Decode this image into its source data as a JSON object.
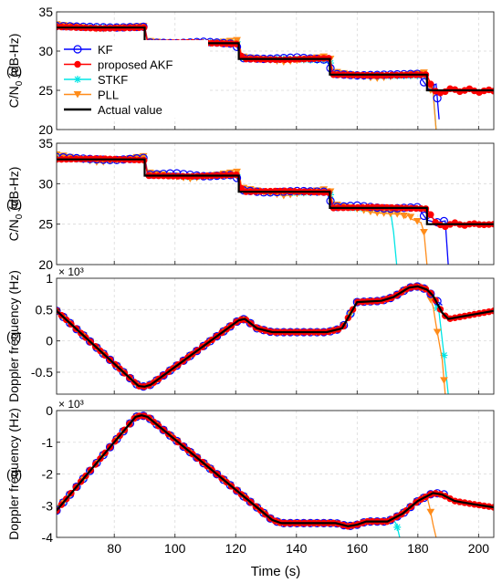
{
  "colors": {
    "kf": "#0000ff",
    "akf": "#ff0000",
    "stkf": "#00e5e5",
    "pll": "#ff8c1a",
    "actual": "#000000",
    "grid": "#d9d9d9"
  },
  "xaxis": {
    "label": "Time (s)",
    "ticks": [
      "80",
      "100",
      "120",
      "140",
      "160",
      "180",
      "200"
    ]
  },
  "chart_data": [
    {
      "type": "line",
      "panel_label": "(a)",
      "ylabel": "C/N₀ (dB-Hz)",
      "ylabel_main": "C/N",
      "ylabel_sub": "0",
      "ylabel_rest": " (dB-Hz)",
      "xlim": [
        61,
        205
      ],
      "ylim": [
        20,
        35
      ],
      "yticks": [
        "20",
        "25",
        "30",
        "35"
      ],
      "ytick_values": [
        20,
        25,
        30,
        35
      ],
      "exponent": "",
      "grid": true,
      "legend": {
        "placement": "left",
        "entries": [
          {
            "name": "KF",
            "color": "#0000ff",
            "marker": "circle"
          },
          {
            "name": "proposed AKF",
            "color": "#ff0000",
            "marker": "dot"
          },
          {
            "name": "STKF",
            "color": "#00e5e5",
            "marker": "star"
          },
          {
            "name": "PLL",
            "color": "#ff8c1a",
            "marker": "triangle"
          },
          {
            "name": "Actual value",
            "color": "#000000",
            "marker": "none"
          }
        ]
      },
      "series": [
        {
          "name": "Actual value",
          "x": [
            61,
            90,
            90,
            121,
            121,
            151,
            151,
            183,
            183,
            205
          ],
          "y": [
            33,
            33,
            31,
            31,
            29,
            29,
            27,
            27,
            25,
            25
          ]
        },
        {
          "name": "KF",
          "x": [
            61,
            70,
            80,
            90,
            91,
            100,
            110,
            120,
            122,
            130,
            140,
            150,
            152,
            160,
            170,
            180,
            183,
            185,
            186,
            187
          ],
          "y": [
            33.2,
            33.1,
            33.0,
            33.1,
            31.1,
            31.0,
            31.2,
            30.9,
            29.1,
            29.0,
            29.2,
            28.9,
            27.1,
            26.9,
            27.0,
            27.1,
            25.5,
            25.6,
            25.8,
            21.3
          ]
        },
        {
          "name": "proposed AKF",
          "x": [
            61,
            75,
            90,
            91,
            105,
            121,
            122,
            136,
            151,
            152,
            166,
            183,
            185,
            188,
            191,
            194,
            197,
            200,
            203,
            205
          ],
          "y": [
            33.1,
            32.9,
            33.0,
            31.0,
            31.1,
            30.9,
            29.0,
            28.9,
            29.1,
            27.0,
            26.9,
            27.0,
            25.0,
            24.6,
            25.3,
            24.8,
            25.2,
            24.7,
            25.1,
            24.9
          ]
        },
        {
          "name": "STKF",
          "x": [
            61,
            75,
            90,
            91,
            105,
            121,
            122,
            136,
            151,
            152,
            166,
            183,
            184,
            185,
            186
          ],
          "y": [
            33.2,
            33.0,
            33.1,
            31.1,
            31.0,
            31.2,
            29.1,
            29.0,
            28.8,
            27.2,
            26.8,
            26.9,
            25.3,
            25.0,
            20.0
          ]
        },
        {
          "name": "PLL",
          "x": [
            61,
            75,
            90,
            91,
            105,
            121,
            122,
            136,
            151,
            152,
            166,
            183,
            184,
            185,
            186
          ],
          "y": [
            33.4,
            32.8,
            33.2,
            31.3,
            30.7,
            31.4,
            29.3,
            28.6,
            29.4,
            27.4,
            26.5,
            27.3,
            25.1,
            24.7,
            20.0
          ]
        }
      ]
    },
    {
      "type": "line",
      "panel_label": "(b)",
      "ylabel": "C/N₀ (dB-Hz)",
      "ylabel_main": "C/N",
      "ylabel_sub": "0",
      "ylabel_rest": " (dB-Hz)",
      "xlim": [
        61,
        205
      ],
      "ylim": [
        20,
        35
      ],
      "yticks": [
        "20",
        "25",
        "30",
        "35"
      ],
      "ytick_values": [
        20,
        25,
        30,
        35
      ],
      "exponent": "",
      "grid": true,
      "series": [
        {
          "name": "Actual value",
          "x": [
            61,
            90,
            90,
            121,
            121,
            151,
            151,
            183,
            183,
            205
          ],
          "y": [
            33,
            33,
            31,
            31,
            29,
            29,
            27,
            27,
            25,
            25
          ]
        },
        {
          "name": "KF",
          "x": [
            61,
            70,
            80,
            90,
            91,
            100,
            110,
            120,
            122,
            130,
            140,
            150,
            152,
            160,
            170,
            180,
            183,
            186,
            189,
            190
          ],
          "y": [
            33.3,
            33.1,
            32.9,
            33.2,
            31.1,
            31.3,
            30.9,
            31.1,
            29.2,
            28.9,
            29.1,
            29.0,
            27.1,
            27.3,
            26.9,
            27.1,
            25.5,
            25.2,
            25.4,
            20.0
          ]
        },
        {
          "name": "proposed AKF",
          "x": [
            61,
            75,
            90,
            91,
            105,
            121,
            122,
            136,
            151,
            152,
            166,
            183,
            186,
            189,
            192,
            195,
            198,
            201,
            205
          ],
          "y": [
            33.0,
            33.1,
            32.9,
            31.0,
            30.9,
            31.1,
            29.0,
            29.1,
            28.9,
            27.0,
            27.1,
            26.9,
            25.1,
            24.7,
            25.2,
            24.8,
            25.1,
            24.9,
            25.0
          ]
        },
        {
          "name": "STKF",
          "x": [
            61,
            75,
            90,
            91,
            105,
            121,
            122,
            136,
            151,
            152,
            166,
            171,
            172,
            173
          ],
          "y": [
            33.2,
            32.9,
            33.1,
            31.2,
            30.8,
            31.1,
            29.2,
            28.8,
            29.0,
            27.2,
            26.8,
            26.6,
            24.0,
            20.0
          ]
        },
        {
          "name": "PLL",
          "x": [
            61,
            75,
            90,
            91,
            105,
            121,
            122,
            136,
            151,
            152,
            166,
            175,
            176,
            177,
            178,
            181,
            182,
            183
          ],
          "y": [
            33.6,
            32.6,
            33.4,
            31.4,
            30.6,
            31.5,
            29.5,
            28.5,
            29.4,
            27.5,
            26.4,
            26.2,
            25.8,
            26.3,
            25.6,
            25.2,
            24.0,
            20.0
          ]
        }
      ]
    },
    {
      "type": "line",
      "panel_label": "(c)",
      "ylabel": "Doppler frequency (Hz)",
      "xlim": [
        61,
        205
      ],
      "ylim": [
        -0.85,
        1.0
      ],
      "yticks": [
        "-0.5",
        "0",
        "0.5",
        "1"
      ],
      "ytick_values": [
        -0.5,
        0,
        0.5,
        1
      ],
      "exponent": "× 10³",
      "grid": true,
      "series": [
        {
          "name": "Actual value",
          "x": [
            61,
            88,
            90,
            92,
            121,
            123,
            127,
            132,
            150,
            155,
            160,
            168,
            172,
            177,
            180,
            183,
            185,
            188,
            190,
            205
          ],
          "y": [
            0.48,
            -0.72,
            -0.73,
            -0.7,
            0.33,
            0.35,
            0.2,
            0.14,
            0.14,
            0.2,
            0.62,
            0.64,
            0.7,
            0.85,
            0.87,
            0.82,
            0.72,
            0.45,
            0.35,
            0.48
          ]
        },
        {
          "name": "KF",
          "x": [
            61,
            88,
            90,
            92,
            121,
            123,
            127,
            132,
            150,
            155,
            160,
            168,
            172,
            177,
            180,
            183,
            186,
            188
          ],
          "y": [
            0.48,
            -0.72,
            -0.73,
            -0.7,
            0.33,
            0.35,
            0.2,
            0.14,
            0.14,
            0.2,
            0.62,
            0.64,
            0.7,
            0.85,
            0.87,
            0.82,
            0.65,
            0.57
          ]
        },
        {
          "name": "proposed AKF",
          "x": [
            61,
            88,
            90,
            92,
            121,
            123,
            127,
            132,
            150,
            155,
            160,
            168,
            172,
            177,
            180,
            183,
            185,
            188,
            190,
            205
          ],
          "y": [
            0.48,
            -0.72,
            -0.73,
            -0.7,
            0.33,
            0.35,
            0.2,
            0.14,
            0.14,
            0.2,
            0.62,
            0.64,
            0.7,
            0.85,
            0.87,
            0.82,
            0.72,
            0.45,
            0.35,
            0.48
          ]
        },
        {
          "name": "STKF",
          "x": [
            61,
            88,
            90,
            92,
            121,
            123,
            127,
            132,
            150,
            155,
            160,
            168,
            172,
            177,
            180,
            183,
            185,
            187,
            189,
            190
          ],
          "y": [
            0.48,
            -0.72,
            -0.73,
            -0.7,
            0.33,
            0.35,
            0.2,
            0.14,
            0.14,
            0.2,
            0.62,
            0.64,
            0.7,
            0.85,
            0.87,
            0.82,
            0.7,
            0.45,
            -0.4,
            -0.85
          ]
        },
        {
          "name": "PLL",
          "x": [
            61,
            88,
            90,
            92,
            121,
            123,
            127,
            132,
            150,
            155,
            160,
            168,
            172,
            177,
            180,
            183,
            185,
            186,
            188,
            189
          ],
          "y": [
            0.48,
            -0.72,
            -0.73,
            -0.7,
            0.33,
            0.35,
            0.2,
            0.14,
            0.14,
            0.2,
            0.62,
            0.64,
            0.7,
            0.85,
            0.87,
            0.82,
            0.55,
            0.25,
            -0.3,
            -0.85
          ]
        }
      ]
    },
    {
      "type": "line",
      "panel_label": "(d)",
      "ylabel": "Doppler frequency (Hz)",
      "xlim": [
        61,
        205
      ],
      "ylim": [
        -4,
        0
      ],
      "yticks": [
        "-4",
        "-3",
        "-2",
        "-1",
        "0"
      ],
      "ytick_values": [
        -4,
        -3,
        -2,
        -1,
        0
      ],
      "exponent": "× 10³",
      "grid": true,
      "series": [
        {
          "name": "Actual value",
          "x": [
            61,
            87,
            89,
            91,
            132,
            135,
            140,
            153,
            157,
            160,
            163,
            170,
            175,
            180,
            185,
            188,
            192,
            198,
            205
          ],
          "y": [
            -3.15,
            -0.2,
            -0.15,
            -0.2,
            -3.45,
            -3.55,
            -3.55,
            -3.55,
            -3.65,
            -3.6,
            -3.5,
            -3.5,
            -3.25,
            -2.85,
            -2.6,
            -2.65,
            -2.85,
            -2.95,
            -3.05
          ]
        },
        {
          "name": "KF",
          "x": [
            61,
            87,
            89,
            91,
            132,
            135,
            140,
            153,
            157,
            160,
            163,
            170,
            175,
            180,
            185,
            188,
            190
          ],
          "y": [
            -3.15,
            -0.2,
            -0.15,
            -0.2,
            -3.45,
            -3.55,
            -3.55,
            -3.55,
            -3.65,
            -3.6,
            -3.5,
            -3.5,
            -3.25,
            -2.85,
            -2.6,
            -2.62,
            -2.7
          ]
        },
        {
          "name": "proposed AKF",
          "x": [
            61,
            87,
            89,
            91,
            132,
            135,
            140,
            153,
            157,
            160,
            163,
            170,
            175,
            180,
            185,
            188,
            192,
            198,
            205
          ],
          "y": [
            -3.15,
            -0.2,
            -0.15,
            -0.2,
            -3.45,
            -3.55,
            -3.55,
            -3.55,
            -3.65,
            -3.6,
            -3.5,
            -3.5,
            -3.25,
            -2.85,
            -2.6,
            -2.65,
            -2.85,
            -2.95,
            -3.05
          ]
        },
        {
          "name": "STKF",
          "x": [
            61,
            87,
            89,
            91,
            132,
            135,
            140,
            153,
            157,
            160,
            163,
            170,
            172,
            173,
            174
          ],
          "y": [
            -3.15,
            -0.2,
            -0.15,
            -0.2,
            -3.45,
            -3.55,
            -3.55,
            -3.55,
            -3.65,
            -3.6,
            -3.5,
            -3.5,
            -3.45,
            -3.6,
            -4.0
          ]
        },
        {
          "name": "PLL",
          "x": [
            61,
            87,
            89,
            91,
            132,
            135,
            140,
            153,
            157,
            160,
            163,
            170,
            175,
            180,
            183,
            184,
            185,
            186
          ],
          "y": [
            -3.15,
            -0.2,
            -0.15,
            -0.2,
            -3.45,
            -3.55,
            -3.55,
            -3.55,
            -3.65,
            -3.6,
            -3.5,
            -3.5,
            -3.25,
            -2.85,
            -2.7,
            -3.1,
            -3.6,
            -4.0
          ]
        }
      ]
    }
  ]
}
